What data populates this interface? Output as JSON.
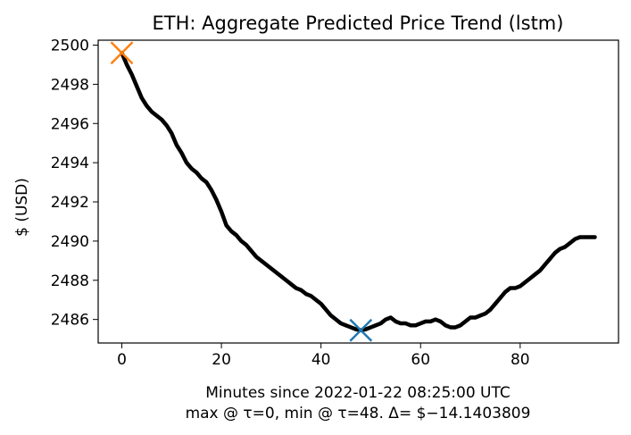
{
  "chart_data": {
    "type": "line",
    "title": "ETH: Aggregate Predicted Price Trend (lstm)",
    "xlabel": "Minutes since 2022-01-22 08:25:00 UTC",
    "xlabel2": "max @ τ=0, min @ τ=48. Δ= $−14.1403809",
    "ylabel": "$ (USD)",
    "xlim": [
      -4.75,
      99.75
    ],
    "ylim": [
      2484.8,
      2500.25
    ],
    "xticks": [
      0,
      20,
      40,
      60,
      80
    ],
    "yticks": [
      2486,
      2488,
      2490,
      2492,
      2494,
      2496,
      2498,
      2500
    ],
    "grid": false,
    "series": [
      {
        "color": "#000000",
        "x": [
          0,
          1,
          2,
          3,
          4,
          5,
          6,
          7,
          8,
          9,
          10,
          11,
          12,
          13,
          14,
          15,
          16,
          17,
          18,
          19,
          20,
          21,
          22,
          23,
          24,
          25,
          26,
          27,
          28,
          29,
          30,
          31,
          32,
          33,
          34,
          35,
          36,
          37,
          38,
          39,
          40,
          41,
          42,
          43,
          44,
          45,
          46,
          47,
          48,
          49,
          50,
          51,
          52,
          53,
          54,
          55,
          56,
          57,
          58,
          59,
          60,
          61,
          62,
          63,
          64,
          65,
          66,
          67,
          68,
          69,
          70,
          71,
          72,
          73,
          74,
          75,
          76,
          77,
          78,
          79,
          80,
          81,
          82,
          83,
          84,
          85,
          86,
          87,
          88,
          89,
          90,
          91,
          92,
          93,
          94,
          95
        ],
        "y": [
          2499.6,
          2499.0,
          2498.5,
          2497.9,
          2497.3,
          2496.9,
          2496.6,
          2496.4,
          2496.2,
          2495.9,
          2495.5,
          2494.9,
          2494.5,
          2494.0,
          2493.7,
          2493.5,
          2493.2,
          2493.0,
          2492.6,
          2492.1,
          2491.5,
          2490.8,
          2490.5,
          2490.3,
          2490.0,
          2489.8,
          2489.5,
          2489.2,
          2489.0,
          2488.8,
          2488.6,
          2488.4,
          2488.2,
          2488.0,
          2487.8,
          2487.6,
          2487.5,
          2487.3,
          2487.2,
          2487.0,
          2486.8,
          2486.5,
          2486.2,
          2486.0,
          2485.8,
          2485.7,
          2485.6,
          2485.5,
          2485.45,
          2485.5,
          2485.6,
          2485.7,
          2485.8,
          2486.0,
          2486.1,
          2485.9,
          2485.8,
          2485.8,
          2485.7,
          2485.7,
          2485.8,
          2485.9,
          2485.9,
          2486.0,
          2485.9,
          2485.7,
          2485.6,
          2485.6,
          2485.7,
          2485.9,
          2486.1,
          2486.1,
          2486.2,
          2486.3,
          2486.5,
          2486.8,
          2487.1,
          2487.4,
          2487.6,
          2487.6,
          2487.7,
          2487.9,
          2488.1,
          2488.3,
          2488.5,
          2488.8,
          2489.1,
          2489.4,
          2489.6,
          2489.7,
          2489.9,
          2490.1,
          2490.2,
          2490.2,
          2490.2,
          2490.2
        ]
      }
    ],
    "markers": [
      {
        "x": 0,
        "y": 2499.6,
        "color": "#ff7f0e",
        "symbol": "x"
      },
      {
        "x": 48,
        "y": 2485.45,
        "color": "#1f77b4",
        "symbol": "x"
      }
    ]
  }
}
